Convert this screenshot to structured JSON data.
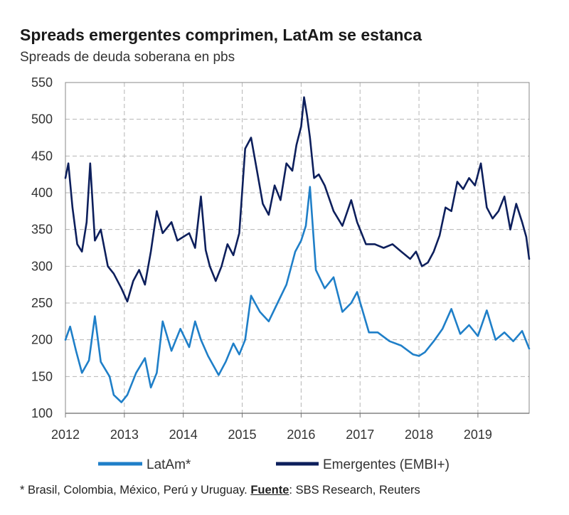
{
  "title": "Spreads emergentes comprimen, LatAm se estanca",
  "subtitle": "Spreads de deuda soberana en pbs",
  "footnote": {
    "prefix": "* Brasil, Colombia, México, Perú y Uruguay. ",
    "source_label": "Fuente",
    "source_text": ": SBS Research, Reuters"
  },
  "colors": {
    "latam": "#1f7fc8",
    "embi": "#0d1f5c",
    "grid": "#b5b5b5"
  },
  "chart_data": {
    "type": "line",
    "title": "Spreads emergentes comprimen, LatAm se estanca",
    "ylabel": "Spreads de deuda soberana en pbs",
    "xlabel": "",
    "ylim": [
      100,
      550
    ],
    "yticks": [
      100,
      150,
      200,
      250,
      300,
      350,
      400,
      450,
      500,
      550
    ],
    "xlim": [
      2012,
      2019.87
    ],
    "xticks": [
      2012,
      2013,
      2014,
      2015,
      2016,
      2017,
      2018,
      2019
    ],
    "grid": true,
    "legend_position": "bottom",
    "series": [
      {
        "name": "LatAm*",
        "x": [
          2012.0,
          2012.08,
          2012.18,
          2012.28,
          2012.4,
          2012.5,
          2012.6,
          2012.75,
          2012.82,
          2012.95,
          2013.05,
          2013.2,
          2013.35,
          2013.45,
          2013.55,
          2013.65,
          2013.8,
          2013.95,
          2014.1,
          2014.2,
          2014.3,
          2014.42,
          2014.6,
          2014.72,
          2014.85,
          2014.95,
          2015.05,
          2015.15,
          2015.3,
          2015.45,
          2015.6,
          2015.75,
          2015.9,
          2016.0,
          2016.08,
          2016.15,
          2016.25,
          2016.4,
          2016.55,
          2016.7,
          2016.85,
          2016.95,
          2017.15,
          2017.3,
          2017.5,
          2017.7,
          2017.9,
          2018.0,
          2018.1,
          2018.25,
          2018.4,
          2018.55,
          2018.7,
          2018.85,
          2019.0,
          2019.15,
          2019.3,
          2019.45,
          2019.6,
          2019.75,
          2019.87
        ],
        "values": [
          200,
          218,
          185,
          155,
          172,
          232,
          170,
          150,
          125,
          115,
          125,
          155,
          175,
          135,
          155,
          225,
          185,
          215,
          190,
          225,
          200,
          178,
          152,
          170,
          195,
          180,
          200,
          260,
          238,
          225,
          250,
          275,
          320,
          335,
          355,
          408,
          295,
          270,
          285,
          238,
          250,
          265,
          210,
          210,
          198,
          192,
          180,
          178,
          183,
          198,
          215,
          242,
          208,
          220,
          205,
          240,
          200,
          210,
          198,
          212,
          188
        ]
      },
      {
        "name": "Emergentes (EMBI+)",
        "x": [
          2012.0,
          2012.05,
          2012.12,
          2012.2,
          2012.28,
          2012.36,
          2012.42,
          2012.5,
          2012.6,
          2012.72,
          2012.82,
          2012.95,
          2013.05,
          2013.15,
          2013.25,
          2013.35,
          2013.45,
          2013.55,
          2013.65,
          2013.8,
          2013.9,
          2014.0,
          2014.1,
          2014.2,
          2014.3,
          2014.38,
          2014.45,
          2014.55,
          2014.65,
          2014.75,
          2014.85,
          2014.95,
          2015.05,
          2015.15,
          2015.25,
          2015.35,
          2015.45,
          2015.55,
          2015.65,
          2015.75,
          2015.85,
          2015.92,
          2016.0,
          2016.05,
          2016.1,
          2016.15,
          2016.22,
          2016.3,
          2016.4,
          2016.55,
          2016.7,
          2016.85,
          2016.95,
          2017.1,
          2017.25,
          2017.4,
          2017.55,
          2017.7,
          2017.85,
          2017.95,
          2018.05,
          2018.15,
          2018.25,
          2018.35,
          2018.45,
          2018.55,
          2018.65,
          2018.75,
          2018.85,
          2018.95,
          2019.05,
          2019.15,
          2019.25,
          2019.35,
          2019.45,
          2019.55,
          2019.65,
          2019.75,
          2019.82,
          2019.87
        ],
        "values": [
          420,
          440,
          380,
          330,
          320,
          360,
          440,
          335,
          350,
          300,
          290,
          270,
          252,
          280,
          295,
          275,
          320,
          375,
          345,
          360,
          335,
          340,
          345,
          325,
          395,
          322,
          300,
          280,
          300,
          330,
          315,
          345,
          460,
          475,
          430,
          385,
          370,
          410,
          390,
          440,
          430,
          465,
          490,
          530,
          505,
          475,
          420,
          425,
          410,
          375,
          355,
          390,
          360,
          330,
          330,
          325,
          330,
          320,
          310,
          320,
          300,
          305,
          320,
          342,
          380,
          375,
          415,
          405,
          420,
          410,
          440,
          380,
          365,
          375,
          395,
          350,
          385,
          360,
          340,
          310
        ]
      }
    ]
  }
}
